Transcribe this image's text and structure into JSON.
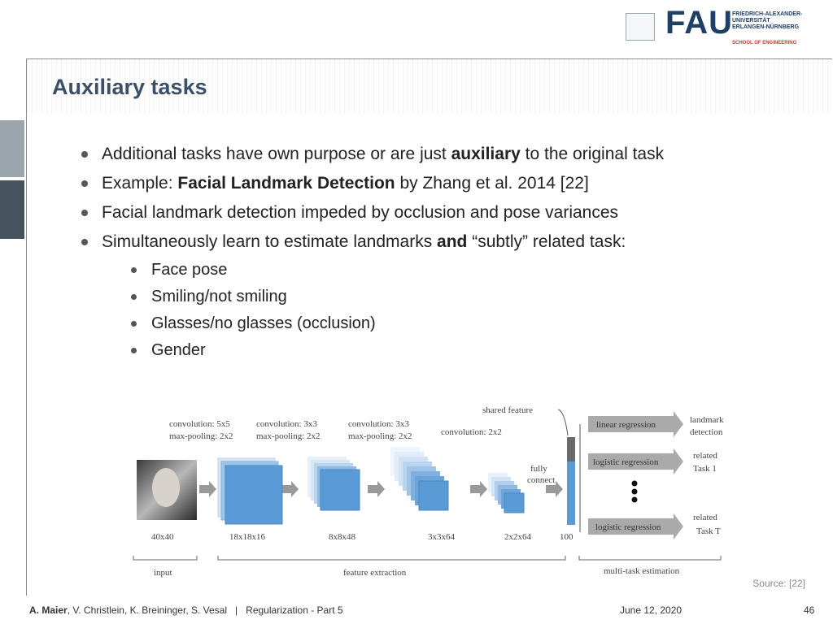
{
  "header": {
    "logo_main": "FAU",
    "logo_lines": [
      "FRIEDRICH-ALEXANDER-",
      "UNIVERSITÄT",
      "ERLANGEN-NÜRNBERG"
    ],
    "school": "SCHOOL OF ENGINEERING"
  },
  "slide": {
    "title": "Auxiliary tasks",
    "bullets": [
      {
        "pre": "Additional tasks have own purpose or are just ",
        "bold": "auxiliary",
        "post": " to the original task"
      },
      {
        "pre": "Example: ",
        "bold": "Facial Landmark Detection",
        "post": " by Zhang et al. 2014 [22]"
      },
      {
        "pre": "Facial landmark detection impeded by occlusion and pose variances",
        "bold": "",
        "post": ""
      },
      {
        "pre": "Simultaneously learn to estimate landmarks ",
        "bold": "and",
        "post": " “subtly” related task:"
      }
    ],
    "subbullets": [
      "Face pose",
      "Smiling/not smiling",
      "Glasses/no glasses (occlusion)",
      "Gender"
    ],
    "source": "Source: [22]"
  },
  "diagram": {
    "conv1": [
      "convolution: 5x5",
      "max-pooling: 2x2"
    ],
    "conv2": [
      "convolution: 3x3",
      "max-pooling: 2x2"
    ],
    "conv3": [
      "convolution: 3x3",
      "max-pooling: 2x2"
    ],
    "conv4": "convolution: 2x2",
    "fully": [
      "fully",
      "connect"
    ],
    "shared": "shared feature",
    "dims": [
      "40x40",
      "18x18x16",
      "8x8x48",
      "3x3x64",
      "2x2x64",
      "100"
    ],
    "heads": [
      "linear regression",
      "logistic regression",
      "logistic regression"
    ],
    "outputs": [
      [
        "landmark",
        "detection"
      ],
      [
        "related",
        "Task 1"
      ],
      [
        "related",
        "Task T"
      ]
    ],
    "sections": [
      "input",
      "feature extraction",
      "multi-task estimation"
    ],
    "colors": {
      "block": "#5b9bd5",
      "arrow": "#999999",
      "sharedBar": "#6a6a6a"
    }
  },
  "footer": {
    "authors_bold": "A. Maier",
    "authors_rest": ", V. Christlein, K. Breininger, S. Vesal",
    "separator": "|",
    "lecture": "Regularization - Part 5",
    "date": "June 12, 2020",
    "page": "46"
  }
}
